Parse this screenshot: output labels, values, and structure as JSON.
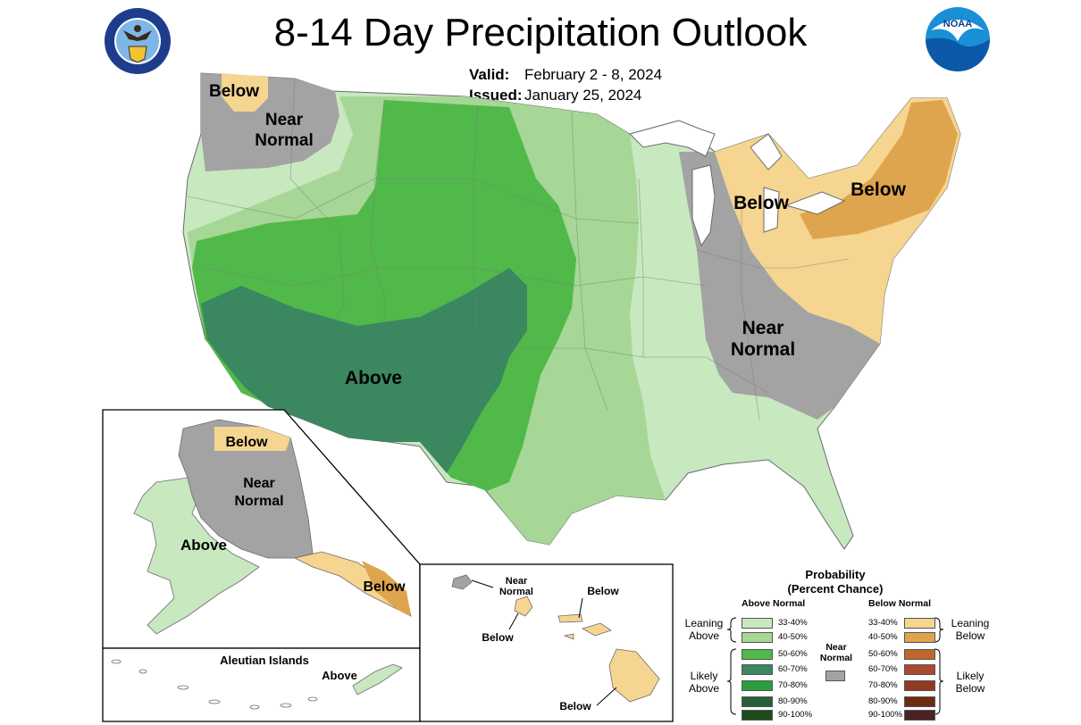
{
  "header": {
    "title": "8-14 Day Precipitation Outlook",
    "valid_label": "Valid:",
    "valid_value": "February 2 - 8, 2024",
    "issued_label": "Issued:",
    "issued_value": "January 25, 2024"
  },
  "logos": {
    "left": "department-of-commerce-seal",
    "right": "noaa-logo"
  },
  "colors": {
    "above_33_40": "#c8e8c0",
    "above_40_50": "#a6d796",
    "above_50_60": "#51b94a",
    "above_60_70": "#3b8760",
    "above_70_80": "#2a9e3e",
    "above_80_90": "#27613c",
    "above_90_100": "#1b4c1a",
    "near_normal": "#a3a3a3",
    "below_33_40": "#f5d590",
    "below_40_50": "#dfa54e",
    "below_50_60": "#c0672e",
    "below_60_70": "#a74a2e",
    "below_70_80": "#8d3b23",
    "below_80_90": "#6e2b0e",
    "below_90_100": "#4b2223"
  },
  "conus_labels": {
    "below_nw": "Below",
    "near_normal_nw_1": "Near",
    "near_normal_nw_2": "Normal",
    "below_glakes": "Below",
    "below_ne": "Below",
    "near_normal_se_1": "Near",
    "near_normal_se_2": "Normal",
    "above_sw": "Above"
  },
  "alaska_labels": {
    "below_north": "Below",
    "near_normal_1": "Near",
    "near_normal_2": "Normal",
    "above_west": "Above",
    "below_panhandle": "Below"
  },
  "aleutian": {
    "title": "Aleutian Islands",
    "label": "Above"
  },
  "hawaii_labels": {
    "near_normal_1": "Near",
    "near_normal_2": "Normal",
    "below_kauai": "Below",
    "below_maui": "Below",
    "below_big_island": "Below"
  },
  "legend": {
    "title_1": "Probability",
    "title_2": "(Percent Chance)",
    "above_header": "Above Normal",
    "below_header": "Below Normal",
    "near_normal_1": "Near",
    "near_normal_2": "Normal",
    "leaning_above_1": "Leaning",
    "leaning_above_2": "Above",
    "likely_above_1": "Likely",
    "likely_above_2": "Above",
    "leaning_below_1": "Leaning",
    "leaning_below_2": "Below",
    "likely_below_1": "Likely",
    "likely_below_2": "Below",
    "above_ranges": [
      "33-40%",
      "40-50%",
      "50-60%",
      "60-70%",
      "70-80%",
      "80-90%",
      "90-100%"
    ],
    "below_ranges": [
      "33-40%",
      "40-50%",
      "50-60%",
      "60-70%",
      "70-80%",
      "80-90%",
      "90-100%"
    ]
  }
}
